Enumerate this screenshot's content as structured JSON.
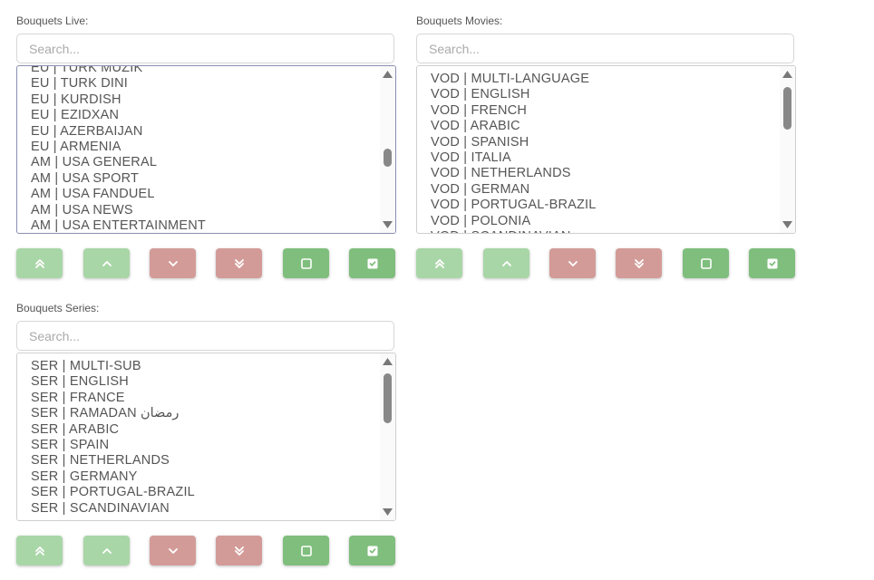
{
  "panels": [
    {
      "label": "Bouquets Live:",
      "search_placeholder": "Search...",
      "items": [
        "EU | TURK MUZIK",
        "EU | TURK DINI",
        "EU | KURDISH",
        "EU | EZIDXAN",
        "EU | AZERBAIJAN",
        "EU | ARMENIA",
        "AM | USA GENERAL",
        "AM | USA SPORT",
        "AM | USA FANDUEL",
        "AM | USA NEWS",
        "AM | USA ENTERTAINMENT"
      ]
    },
    {
      "label": "Bouquets Movies:",
      "search_placeholder": "Search...",
      "items": [
        "VOD | MULTI-LANGUAGE",
        "VOD | ENGLISH",
        "VOD | FRENCH",
        "VOD | ARABIC",
        "VOD | SPANISH",
        "VOD | ITALIA",
        "VOD | NETHERLANDS",
        "VOD | GERMAN",
        "VOD | PORTUGAL-BRAZIL",
        "VOD | POLONIA",
        "VOD | SCANDINAVIAN"
      ]
    },
    {
      "label": "Bouquets Series:",
      "search_placeholder": "Search...",
      "items": [
        "SER | MULTI-SUB",
        "SER | ENGLISH",
        "SER | FRANCE",
        "SER | RAMADAN رمضان",
        "SER | ARABIC",
        "SER | SPAIN",
        "SER | NETHERLANDS",
        "SER | GERMANY",
        "SER | PORTUGAL-BRAZIL",
        "SER | SCANDINAVIAN"
      ]
    }
  ]
}
